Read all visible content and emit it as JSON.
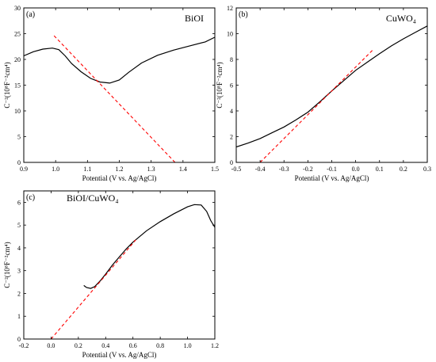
{
  "chart_data": [
    {
      "type": "line",
      "panel_label": "(a)",
      "title": "BiOI",
      "xlabel": "Potential (V vs. Ag/AgCl)",
      "ylabel": "C⁻²(10⁸F⁻²cm⁴)",
      "xlim": [
        0.9,
        1.5
      ],
      "ylim": [
        0,
        30
      ],
      "xticks": [
        0.9,
        1.0,
        1.1,
        1.2,
        1.3,
        1.4,
        1.5
      ],
      "yticks": [
        0,
        5,
        10,
        15,
        20,
        25,
        30
      ],
      "xtick_labels": [
        "0.9",
        "1.0",
        "1.1",
        "1.2",
        "1.3",
        "1.4",
        "1.5"
      ],
      "ytick_labels": [
        "0",
        "5",
        "10",
        "15",
        "20",
        "25",
        "30"
      ],
      "grid": false,
      "series": [
        {
          "style": "solid",
          "color": "#000000",
          "x": [
            0.9,
            0.93,
            0.96,
            0.99,
            1.01,
            1.03,
            1.05,
            1.08,
            1.11,
            1.14,
            1.17,
            1.2,
            1.23,
            1.27,
            1.32,
            1.37,
            1.42,
            1.47,
            1.5
          ],
          "y": [
            20.7,
            21.5,
            22.0,
            22.2,
            21.9,
            20.7,
            19.2,
            17.6,
            16.3,
            15.6,
            15.4,
            16.0,
            17.5,
            19.3,
            20.8,
            21.8,
            22.6,
            23.4,
            24.3
          ]
        },
        {
          "style": "dashed",
          "color": "#ff0000",
          "x": [
            0.995,
            1.375
          ],
          "y": [
            24.6,
            0
          ]
        }
      ]
    },
    {
      "type": "line",
      "panel_label": "(b)",
      "title": "CuWO₄",
      "xlabel": "Potential (V vs. Ag/AgCl)",
      "ylabel": "C⁻²(10⁸F⁻²cm⁴)",
      "xlim": [
        -0.5,
        0.3
      ],
      "ylim": [
        0,
        12
      ],
      "xticks": [
        -0.5,
        -0.4,
        -0.3,
        -0.2,
        -0.1,
        0.0,
        0.1,
        0.2,
        0.3
      ],
      "yticks": [
        0,
        2,
        4,
        6,
        8,
        10,
        12
      ],
      "xtick_labels": [
        "-0.5",
        "-0.4",
        "-0.3",
        "-0.2",
        "-0.1",
        "0.0",
        "0.1",
        "0.2",
        "0.3"
      ],
      "ytick_labels": [
        "0",
        "2",
        "4",
        "6",
        "8",
        "10",
        "12"
      ],
      "grid": false,
      "series": [
        {
          "style": "solid",
          "color": "#000000",
          "x": [
            -0.5,
            -0.45,
            -0.4,
            -0.35,
            -0.3,
            -0.25,
            -0.2,
            -0.15,
            -0.1,
            -0.05,
            0.0,
            0.05,
            0.1,
            0.15,
            0.2,
            0.25,
            0.3
          ],
          "y": [
            1.2,
            1.5,
            1.85,
            2.3,
            2.75,
            3.3,
            3.9,
            4.7,
            5.55,
            6.35,
            7.15,
            7.8,
            8.45,
            9.05,
            9.6,
            10.1,
            10.6
          ]
        },
        {
          "style": "dashed",
          "color": "#ff0000",
          "x": [
            -0.4,
            0.07
          ],
          "y": [
            0,
            8.7
          ]
        }
      ]
    },
    {
      "type": "line",
      "panel_label": "(c)",
      "title": "BiOI/CuWO₄",
      "xlabel": "Potential (V vs. Ag/AgCl)",
      "ylabel": "C⁻²(10⁸F⁻²cm⁴)",
      "xlim": [
        -0.2,
        1.2
      ],
      "ylim": [
        0,
        6.5
      ],
      "xticks": [
        -0.2,
        0.0,
        0.2,
        0.4,
        0.6,
        0.8,
        1.0,
        1.2
      ],
      "yticks": [
        0,
        1,
        2,
        3,
        4,
        5,
        6
      ],
      "xtick_labels": [
        "-0.2",
        "0.0",
        "0.2",
        "0.4",
        "0.6",
        "0.8",
        "1.0",
        "1.2"
      ],
      "ytick_labels": [
        "0",
        "1",
        "2",
        "3",
        "4",
        "5",
        "6"
      ],
      "grid": false,
      "series": [
        {
          "style": "solid",
          "color": "#000000",
          "x": [
            0.24,
            0.26,
            0.29,
            0.32,
            0.36,
            0.4,
            0.45,
            0.5,
            0.55,
            0.6,
            0.7,
            0.8,
            0.9,
            1.0,
            1.05,
            1.1,
            1.14,
            1.17,
            1.2
          ],
          "y": [
            2.35,
            2.26,
            2.22,
            2.3,
            2.55,
            2.85,
            3.25,
            3.6,
            3.95,
            4.25,
            4.75,
            5.15,
            5.5,
            5.8,
            5.9,
            5.88,
            5.6,
            5.2,
            4.9
          ]
        },
        {
          "style": "dashed",
          "color": "#ff0000",
          "x": [
            0.0,
            0.62
          ],
          "y": [
            0,
            4.35
          ]
        }
      ]
    }
  ]
}
